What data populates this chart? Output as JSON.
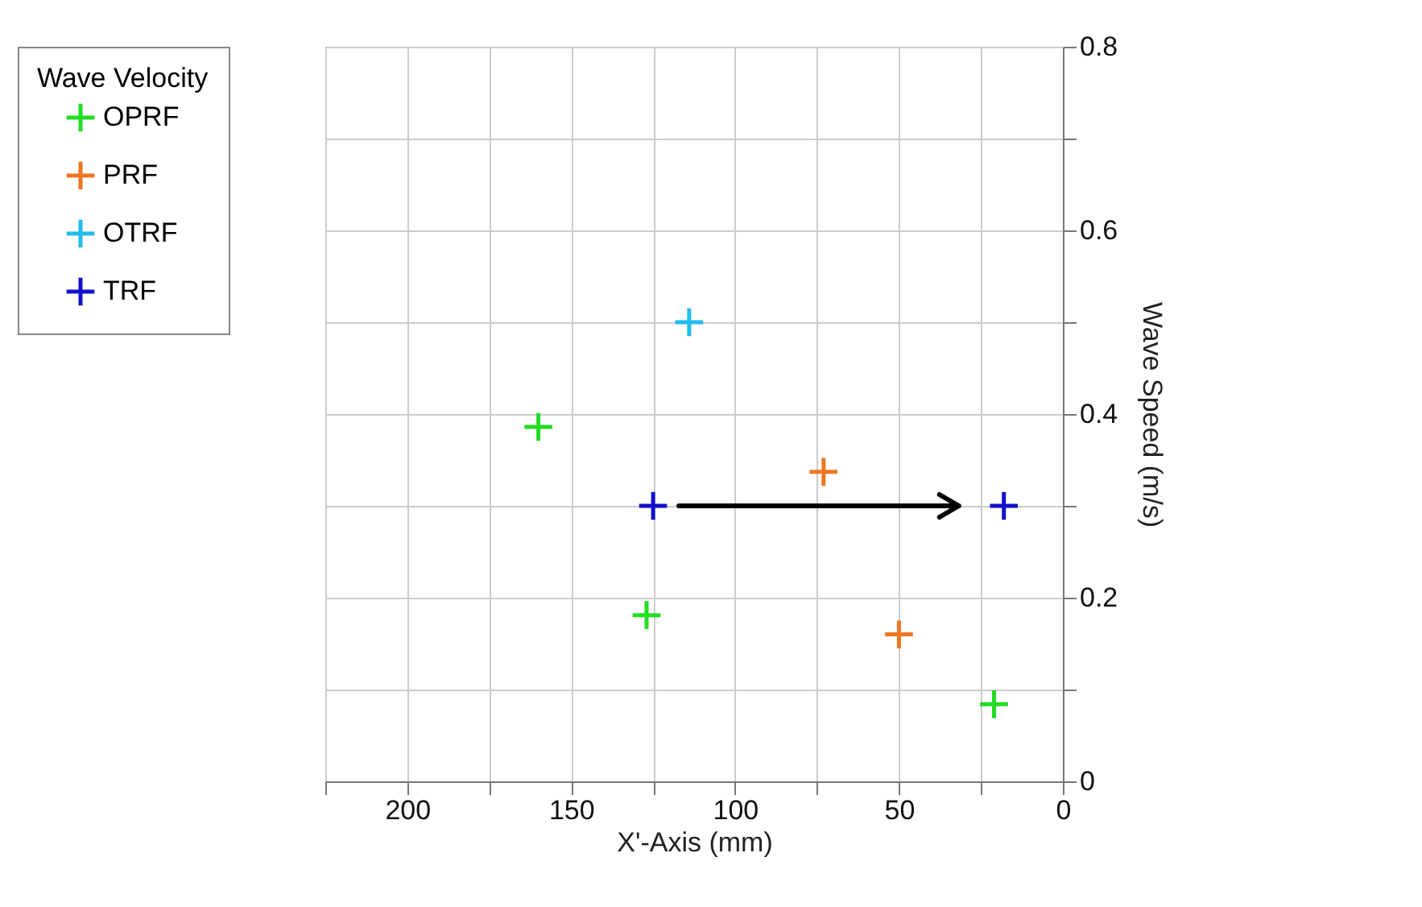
{
  "chart_data": {
    "type": "scatter",
    "xlabel": "X'-Axis (mm)",
    "ylabel": "Wave Speed (m/s)",
    "legend_title": "Wave Velocity",
    "legend": "left",
    "marker": "cross",
    "grid": true,
    "xlim": [
      225,
      0
    ],
    "xticks": [
      {
        "value": 225,
        "label": null
      },
      200,
      {
        "value": 175,
        "label": null
      },
      150,
      {
        "value": 125,
        "label": null
      },
      100,
      {
        "value": 75,
        "label": null
      },
      50,
      {
        "value": 25,
        "label": null
      },
      0
    ],
    "ylim": [
      0,
      0.8
    ],
    "yticks": [
      0,
      {
        "value": 0.1,
        "label": null
      },
      0.2,
      {
        "value": 0.3,
        "label": null
      },
      0.4,
      {
        "value": 0.5,
        "label": null
      },
      0.6,
      {
        "value": 0.7,
        "label": null
      },
      0.8
    ],
    "series": [
      {
        "name": "OPRF",
        "color": "#22dd22",
        "x": [
          160,
          127,
          21
        ],
        "values": [
          0.386,
          0.181,
          0.084
        ]
      },
      {
        "name": "PRF",
        "color": "#ee7722",
        "x": [
          73,
          50
        ],
        "values": [
          0.337,
          0.16
        ]
      },
      {
        "name": "OTRF",
        "color": "#22bbee",
        "x": [
          114
        ],
        "values": [
          0.5
        ]
      },
      {
        "name": "TRF",
        "color": "#1111cc",
        "x": [
          125,
          18
        ],
        "values": [
          0.3,
          0.3
        ]
      }
    ]
  }
}
